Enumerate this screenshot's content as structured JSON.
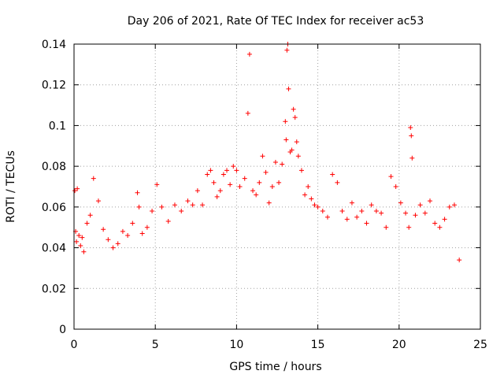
{
  "chart_data": {
    "type": "scatter",
    "title": "Day 206 of 2021, Rate Of TEC Index for receiver ac53",
    "xlabel": "GPS time / hours",
    "ylabel": "ROTI / TECUs",
    "xlim": [
      0,
      25
    ],
    "ylim": [
      0,
      0.14
    ],
    "x_ticks": [
      "0",
      "5",
      "10",
      "15",
      "20",
      "25"
    ],
    "y_ticks": [
      "0",
      "0.02",
      "0.04",
      "0.06",
      "0.08",
      "0.1",
      "0.12",
      "0.14"
    ],
    "grid": true,
    "marker": "+",
    "color": "#ff0000",
    "series": [
      {
        "x": [
          0.05,
          0.1,
          0.15,
          0.2,
          0.3,
          0.4,
          0.5,
          0.6,
          0.8,
          1.0,
          1.2,
          1.5,
          1.8,
          2.1,
          2.4,
          2.7,
          3.0,
          3.3,
          3.6,
          3.9,
          4.0,
          4.2,
          4.5,
          4.8,
          5.1,
          5.4,
          5.8,
          6.2,
          6.6,
          7.0,
          7.3,
          7.6,
          7.9,
          8.2,
          8.4,
          8.6,
          8.8,
          9.0,
          9.2,
          9.4,
          9.6,
          9.8,
          10.0,
          10.2,
          10.5,
          10.7,
          10.8,
          11.0,
          11.2,
          11.4,
          11.6,
          11.8,
          12.0,
          12.2,
          12.4,
          12.6,
          12.8,
          13.0,
          13.05,
          13.1,
          13.15,
          13.2,
          13.3,
          13.4,
          13.5,
          13.6,
          13.7,
          13.8,
          14.0,
          14.2,
          14.4,
          14.6,
          14.8,
          15.0,
          15.3,
          15.6,
          15.9,
          16.2,
          16.5,
          16.8,
          17.1,
          17.4,
          17.7,
          18.0,
          18.3,
          18.6,
          18.9,
          19.2,
          19.5,
          19.8,
          20.1,
          20.4,
          20.6,
          20.7,
          20.75,
          20.8,
          21.0,
          21.3,
          21.6,
          21.9,
          22.2,
          22.5,
          22.8,
          23.1,
          23.4,
          23.7
        ],
        "y": [
          0.068,
          0.048,
          0.043,
          0.069,
          0.046,
          0.041,
          0.045,
          0.038,
          0.052,
          0.056,
          0.074,
          0.063,
          0.049,
          0.044,
          0.04,
          0.042,
          0.048,
          0.046,
          0.052,
          0.067,
          0.06,
          0.047,
          0.05,
          0.058,
          0.071,
          0.06,
          0.053,
          0.061,
          0.058,
          0.063,
          0.061,
          0.068,
          0.061,
          0.076,
          0.078,
          0.072,
          0.065,
          0.068,
          0.076,
          0.078,
          0.071,
          0.08,
          0.078,
          0.07,
          0.074,
          0.106,
          0.135,
          0.068,
          0.066,
          0.072,
          0.085,
          0.077,
          0.062,
          0.07,
          0.082,
          0.072,
          0.081,
          0.102,
          0.093,
          0.137,
          0.14,
          0.118,
          0.087,
          0.088,
          0.108,
          0.104,
          0.092,
          0.085,
          0.078,
          0.066,
          0.07,
          0.064,
          0.061,
          0.06,
          0.058,
          0.055,
          0.076,
          0.072,
          0.058,
          0.054,
          0.062,
          0.055,
          0.058,
          0.052,
          0.061,
          0.058,
          0.057,
          0.05,
          0.075,
          0.07,
          0.062,
          0.057,
          0.05,
          0.099,
          0.095,
          0.084,
          0.056,
          0.061,
          0.057,
          0.063,
          0.052,
          0.05,
          0.054,
          0.06,
          0.061,
          0.034
        ]
      }
    ]
  }
}
